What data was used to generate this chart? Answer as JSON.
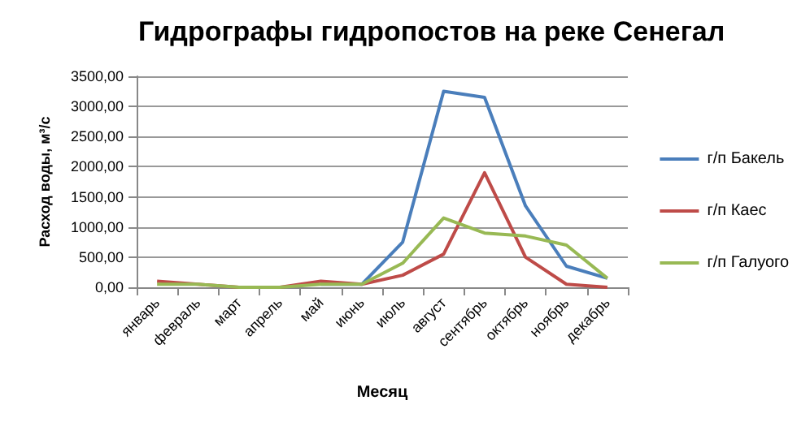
{
  "chart_data": {
    "type": "line",
    "title": "Гидрографы гидропостов на реке Сенегал",
    "xlabel": "Месяц",
    "ylabel": "Расход воды, м³/с",
    "categories": [
      "январь",
      "февраль",
      "март",
      "апрель",
      "май",
      "июнь",
      "июль",
      "август",
      "сентябрь",
      "октябрь",
      "ноябрь",
      "декабрь"
    ],
    "series": [
      {
        "name": "г/п Бакель",
        "color": "#4a7ebb",
        "values": [
          null,
          null,
          null,
          null,
          50,
          50,
          750,
          3250,
          3150,
          1350,
          350,
          150
        ]
      },
      {
        "name": "г/п Каес",
        "color": "#be4b48",
        "values": [
          100,
          50,
          0,
          0,
          100,
          50,
          200,
          550,
          1900,
          500,
          50,
          0
        ]
      },
      {
        "name": "г/п Галуого",
        "color": "#98b954",
        "values": [
          50,
          50,
          0,
          0,
          50,
          50,
          400,
          1150,
          900,
          850,
          700,
          150
        ]
      }
    ],
    "ylim": [
      0,
      3500
    ],
    "yticks": [
      {
        "value": 0,
        "label": "0,00"
      },
      {
        "value": 500,
        "label": "500,00"
      },
      {
        "value": 1000,
        "label": "1000,00"
      },
      {
        "value": 1500,
        "label": "1500,00"
      },
      {
        "value": 2000,
        "label": "2000,00"
      },
      {
        "value": 2500,
        "label": "2500,00"
      },
      {
        "value": 3000,
        "label": "3000,00"
      },
      {
        "value": 3500,
        "label": "3500,00"
      }
    ],
    "grid": "y",
    "legend": "right",
    "marker": "none",
    "line_style": "solid"
  }
}
